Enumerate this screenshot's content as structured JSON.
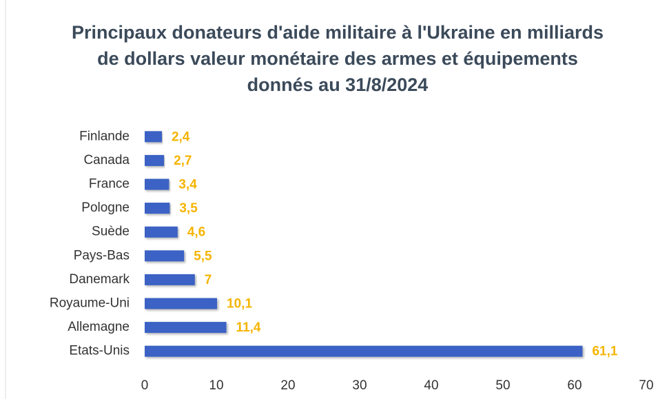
{
  "chart_data": {
    "type": "barh",
    "title": "Principaux donateurs d'aide militaire à l'Ukraine en milliards de dollars valeur monétaire des armes et équipements donnés au 31/8/2024",
    "categories": [
      "Finlande",
      "Canada",
      "France",
      "Pologne",
      "Suède",
      "Pays-Bas",
      "Danemark",
      "Royaume-Uni",
      "Allemagne",
      "Etats-Unis"
    ],
    "values": [
      2.4,
      2.7,
      3.4,
      3.5,
      4.6,
      5.5,
      7,
      10.1,
      11.4,
      61.1
    ],
    "value_labels": [
      "2,4",
      "2,7",
      "3,4",
      "3,5",
      "4,6",
      "5,5",
      "7",
      "10,1",
      "11,4",
      "61,1"
    ],
    "color": "#3a62c4",
    "xlim": [
      0,
      70
    ],
    "xticks": [
      0,
      10,
      20,
      30,
      40,
      50,
      60,
      70
    ]
  }
}
